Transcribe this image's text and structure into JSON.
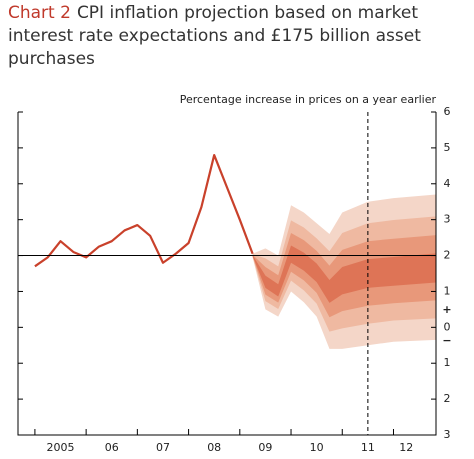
{
  "chart_data": {
    "type": "fan",
    "chart_label": "Chart 2",
    "title": "CPI inflation projection based on market interest rate expectations and £175 billion asset purchases",
    "y_axis_label": "Percentage increase in prices on a year earlier",
    "xlim": [
      2004.67,
      2012.83
    ],
    "ylim": [
      -3,
      6
    ],
    "yticks": [
      6,
      5,
      4,
      3,
      2,
      1,
      0,
      {
        "value": -1,
        "label": "1"
      },
      {
        "value": -2,
        "label": "2"
      },
      {
        "value": -3,
        "label": "3"
      }
    ],
    "sign_labels": [
      "+",
      "−"
    ],
    "xticks": [
      {
        "value": 2005.5,
        "label": "2005"
      },
      {
        "value": 2006.5,
        "label": "06"
      },
      {
        "value": 2007.5,
        "label": "07"
      },
      {
        "value": 2008.5,
        "label": "08"
      },
      {
        "value": 2009.5,
        "label": "09"
      },
      {
        "value": 2010.5,
        "label": "10"
      },
      {
        "value": 2011.5,
        "label": "11"
      },
      {
        "value": 2012.25,
        "label": "12"
      }
    ],
    "x_boundaries": [
      2005,
      2006,
      2007,
      2008,
      2009,
      2010,
      2011,
      2012
    ],
    "reference_y": 2,
    "dashed_x": 2011.5,
    "series": [
      {
        "color": "#c9412b",
        "x": [
          2005,
          2005.25,
          2005.5,
          2005.75,
          2006,
          2006.25,
          2006.5,
          2006.75,
          2007,
          2007.25,
          2007.5,
          2007.75,
          2008,
          2008.25,
          2008.5,
          2008.75,
          2009,
          2009.25
        ],
        "values": [
          1.7,
          1.95,
          2.4,
          2.1,
          1.95,
          2.25,
          2.4,
          2.7,
          2.85,
          2.55,
          1.8,
          2.05,
          2.35,
          3.35,
          4.8,
          3.9,
          3.0,
          2.05
        ]
      }
    ],
    "fan": {
      "x": [
        2009.25,
        2009.5,
        2009.75,
        2010,
        2010.25,
        2010.5,
        2010.75,
        2011,
        2011.5,
        2012,
        2012.83
      ],
      "bands": [
        {
          "color": "#f4d6c8",
          "upper": [
            2.05,
            2.2,
            2.0,
            3.4,
            3.2,
            2.9,
            2.6,
            3.2,
            3.5,
            3.6,
            3.7
          ],
          "lower": [
            1.95,
            0.5,
            0.3,
            1.0,
            0.7,
            0.3,
            -0.6,
            -0.6,
            -0.5,
            -0.4,
            -0.35
          ]
        },
        {
          "color": "#efb9a1",
          "upper": [
            2.04,
            1.92,
            1.7,
            2.98,
            2.78,
            2.48,
            2.12,
            2.63,
            2.9,
            2.99,
            3.09
          ],
          "lower": [
            1.97,
            0.73,
            0.51,
            1.3,
            1.03,
            0.66,
            -0.12,
            -0.03,
            0.1,
            0.19,
            0.25
          ]
        },
        {
          "color": "#e8987a",
          "upper": [
            2.02,
            1.68,
            1.45,
            2.63,
            2.43,
            2.13,
            1.72,
            2.16,
            2.4,
            2.47,
            2.57
          ],
          "lower": [
            1.98,
            0.91,
            0.69,
            1.55,
            1.31,
            0.96,
            0.28,
            0.45,
            0.6,
            0.67,
            0.75
          ]
        },
        {
          "color": "#de7456",
          "upper": [
            2.01,
            1.44,
            1.2,
            2.28,
            2.08,
            1.78,
            1.32,
            1.68,
            1.9,
            1.96,
            2.06
          ],
          "lower": [
            1.99,
            1.1,
            0.86,
            1.8,
            1.58,
            1.26,
            0.68,
            0.92,
            1.1,
            1.16,
            1.25
          ]
        }
      ]
    }
  }
}
